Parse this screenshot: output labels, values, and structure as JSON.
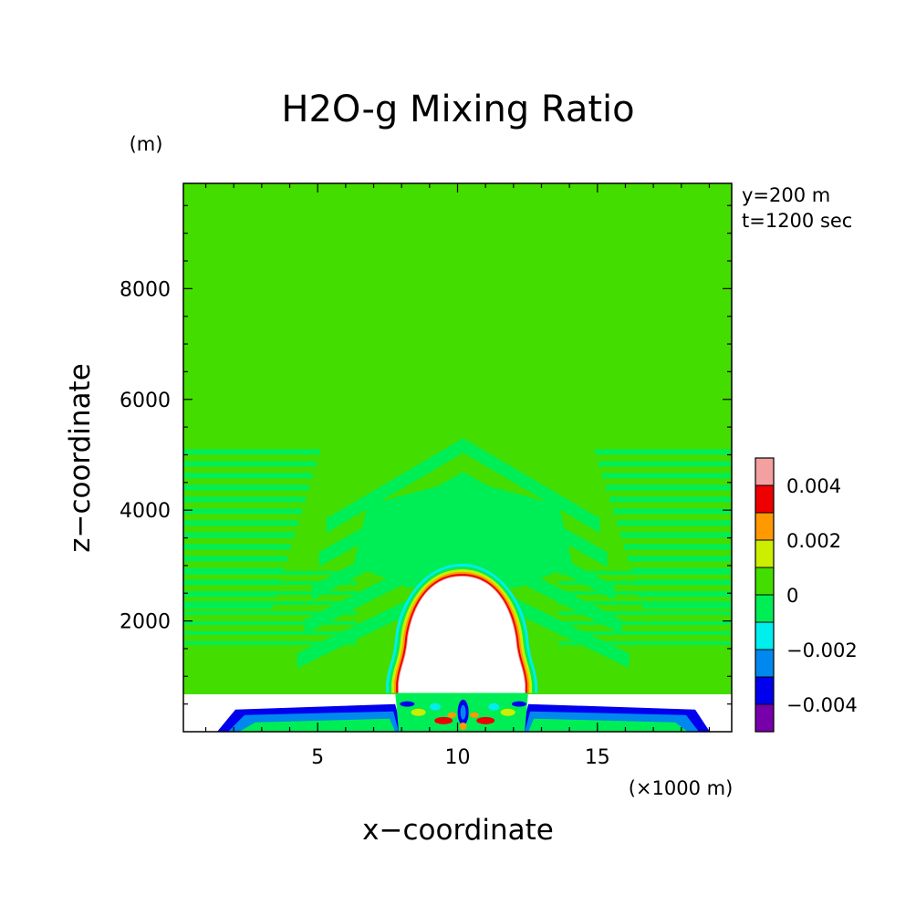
{
  "chart_data": {
    "type": "heatmap",
    "title": "H2O-g Mixing Ratio",
    "xlabel": "x−coordinate",
    "ylabel": "z−coordinate",
    "x_unit": "(×1000 m)",
    "y_unit": "(m)",
    "xlim": [
      0.2,
      19.8
    ],
    "ylim": [
      0,
      9900
    ],
    "x_ticks": [
      5,
      10,
      15
    ],
    "y_ticks": [
      2000,
      4000,
      6000,
      8000
    ],
    "x_tick_labels": [
      "5",
      "10",
      "15"
    ],
    "y_tick_labels": [
      "2000",
      "4000",
      "6000",
      "8000"
    ],
    "annotations": [
      "y=200 m",
      "t=1200 sec"
    ],
    "background_value_range": [
      0,
      0.001
    ],
    "features": [
      {
        "kind": "masked-region",
        "label": "",
        "x_range": [
          7.9,
          12.4
        ],
        "z_top": 2800,
        "z_bottom": 700
      },
      {
        "kind": "masked-layer",
        "label": "",
        "z_range": [
          0,
          700
        ]
      },
      {
        "kind": "arch-bands",
        "label": "",
        "apex_x": 10.2,
        "apex_z": 5300
      }
    ],
    "colorbar": {
      "ticks": [
        "0.004",
        "0.002",
        "0",
        "−0.002",
        "−0.004"
      ],
      "tick_values": [
        0.004,
        0.002,
        0,
        -0.002,
        -0.004
      ],
      "range": [
        -0.005,
        0.005
      ],
      "colors": [
        "#f4a0a0",
        "#ee0000",
        "#ff9900",
        "#ccee00",
        "#44dd00",
        "#00ee55",
        "#00eeee",
        "#0088ee",
        "#0000ee",
        "#7700aa"
      ]
    }
  }
}
